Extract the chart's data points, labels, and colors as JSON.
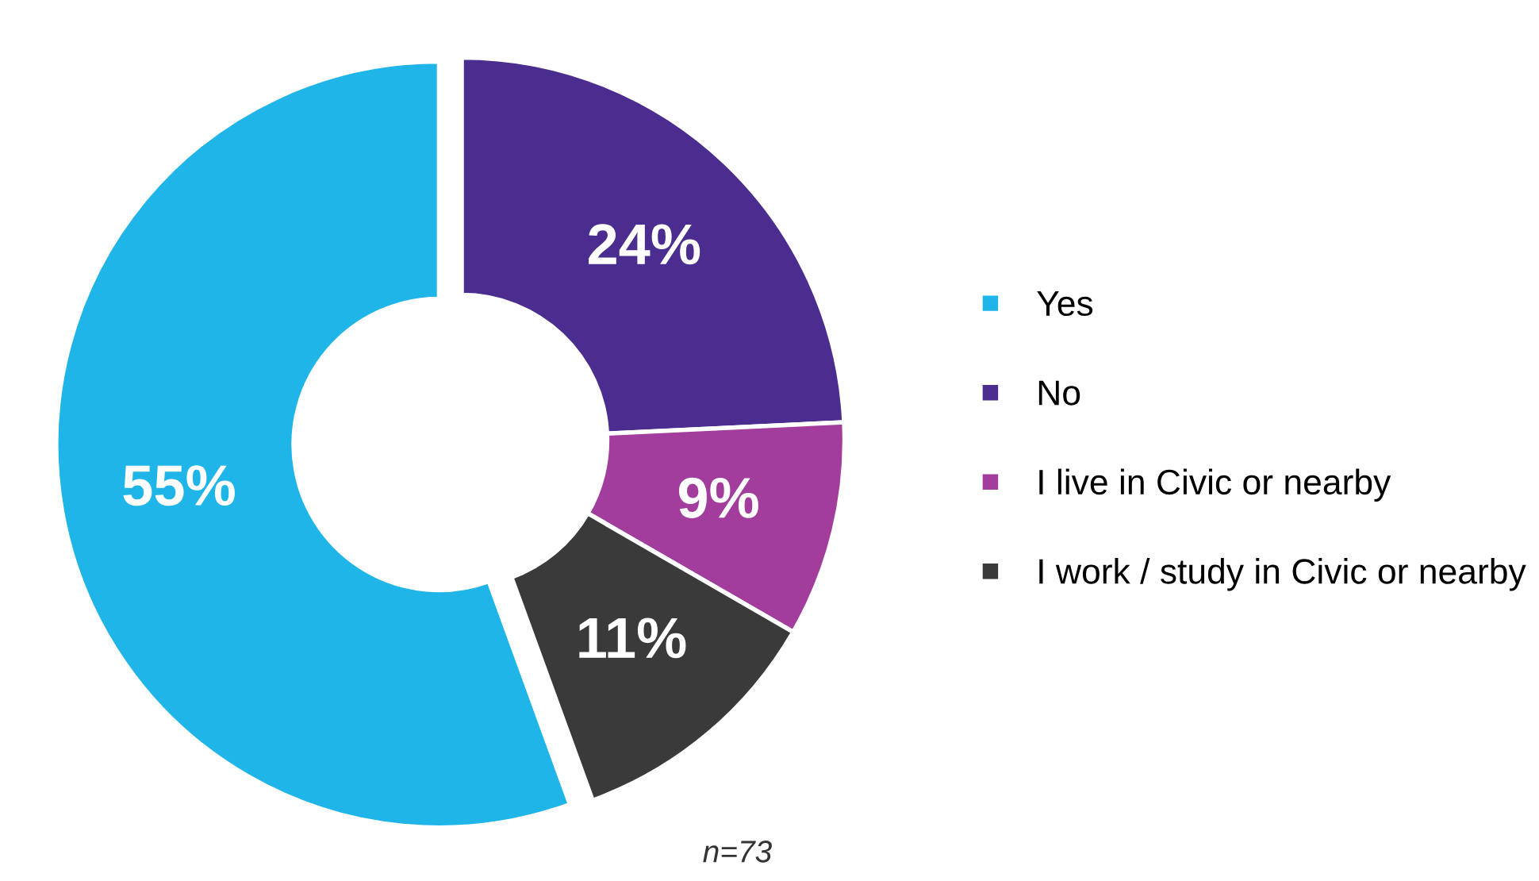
{
  "chart_data": {
    "type": "donut",
    "categories": [
      "Yes",
      "No",
      "I live in Civic or nearby",
      "I work / study in Civic or nearby"
    ],
    "values": [
      55,
      24,
      9,
      11
    ],
    "colors": [
      "#1fb5e9",
      "#4b2d8f",
      "#a23d9e",
      "#3a3a3a"
    ],
    "value_labels": [
      "55%",
      "24%",
      "9%",
      "11%"
    ],
    "legend": "right",
    "annotations": [
      {
        "text": "n=73"
      }
    ]
  }
}
